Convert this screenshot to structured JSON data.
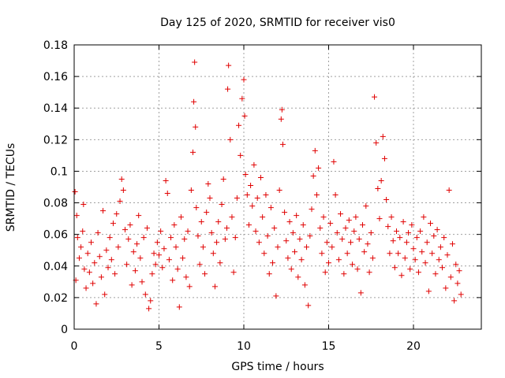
{
  "chart_data": {
    "type": "scatter",
    "title": "Day 125 of 2020, SRMTID for receiver vis0",
    "xlabel": "GPS time / hours",
    "ylabel": "SRMTID / TECUs",
    "xlim": [
      0,
      24
    ],
    "ylim": [
      0,
      0.18
    ],
    "xticks": [
      0,
      5,
      10,
      15,
      20
    ],
    "xtick_labels": [
      "0",
      "5",
      "10",
      "15",
      "20"
    ],
    "yticks": [
      0,
      0.02,
      0.04,
      0.06,
      0.08,
      0.1,
      0.12,
      0.14,
      0.16,
      0.18
    ],
    "ytick_labels": [
      "0",
      "0.02",
      "0.04",
      "0.06",
      "0.08",
      "0.1",
      "0.12",
      "0.14",
      "0.16",
      "0.18"
    ],
    "grid": true,
    "marker": "+",
    "colors": {
      "marker": "#e00000",
      "grid": "#a0a0a0",
      "axis": "#000000"
    },
    "series": [
      {
        "name": "SRMTID",
        "points": [
          [
            0.05,
            0.087
          ],
          [
            0.1,
            0.031
          ],
          [
            0.15,
            0.072
          ],
          [
            0.2,
            0.058
          ],
          [
            0.3,
            0.045
          ],
          [
            0.4,
            0.052
          ],
          [
            0.5,
            0.062
          ],
          [
            0.55,
            0.079
          ],
          [
            0.6,
            0.038
          ],
          [
            0.7,
            0.026
          ],
          [
            0.8,
            0.048
          ],
          [
            0.9,
            0.036
          ],
          [
            1.0,
            0.055
          ],
          [
            1.1,
            0.029
          ],
          [
            1.2,
            0.042
          ],
          [
            1.3,
            0.016
          ],
          [
            1.4,
            0.061
          ],
          [
            1.5,
            0.046
          ],
          [
            1.6,
            0.033
          ],
          [
            1.7,
            0.075
          ],
          [
            1.8,
            0.022
          ],
          [
            1.9,
            0.05
          ],
          [
            2.0,
            0.039
          ],
          [
            2.1,
            0.058
          ],
          [
            2.2,
            0.044
          ],
          [
            2.3,
            0.067
          ],
          [
            2.4,
            0.035
          ],
          [
            2.5,
            0.073
          ],
          [
            2.6,
            0.052
          ],
          [
            2.7,
            0.081
          ],
          [
            2.8,
            0.095
          ],
          [
            2.9,
            0.088
          ],
          [
            3.0,
            0.063
          ],
          [
            3.1,
            0.041
          ],
          [
            3.2,
            0.057
          ],
          [
            3.3,
            0.066
          ],
          [
            3.4,
            0.028
          ],
          [
            3.5,
            0.049
          ],
          [
            3.6,
            0.037
          ],
          [
            3.7,
            0.054
          ],
          [
            3.8,
            0.072
          ],
          [
            3.9,
            0.045
          ],
          [
            4.0,
            0.03
          ],
          [
            4.1,
            0.058
          ],
          [
            4.2,
            0.022
          ],
          [
            4.3,
            0.064
          ],
          [
            4.4,
            0.013
          ],
          [
            4.5,
            0.018
          ],
          [
            4.6,
            0.035
          ],
          [
            4.7,
            0.048
          ],
          [
            4.8,
            0.041
          ],
          [
            4.9,
            0.055
          ],
          [
            5.0,
            0.047
          ],
          [
            5.1,
            0.062
          ],
          [
            5.2,
            0.039
          ],
          [
            5.3,
            0.051
          ],
          [
            5.4,
            0.094
          ],
          [
            5.5,
            0.086
          ],
          [
            5.6,
            0.044
          ],
          [
            5.7,
            0.058
          ],
          [
            5.8,
            0.031
          ],
          [
            5.9,
            0.066
          ],
          [
            6.0,
            0.052
          ],
          [
            6.1,
            0.038
          ],
          [
            6.2,
            0.014
          ],
          [
            6.3,
            0.071
          ],
          [
            6.4,
            0.045
          ],
          [
            6.5,
            0.057
          ],
          [
            6.6,
            0.033
          ],
          [
            6.7,
            0.062
          ],
          [
            6.8,
            0.027
          ],
          [
            6.9,
            0.088
          ],
          [
            7.0,
            0.112
          ],
          [
            7.05,
            0.144
          ],
          [
            7.1,
            0.169
          ],
          [
            7.15,
            0.128
          ],
          [
            7.2,
            0.077
          ],
          [
            7.3,
            0.059
          ],
          [
            7.4,
            0.041
          ],
          [
            7.5,
            0.068
          ],
          [
            7.6,
            0.052
          ],
          [
            7.7,
            0.035
          ],
          [
            7.8,
            0.074
          ],
          [
            7.9,
            0.092
          ],
          [
            8.0,
            0.083
          ],
          [
            8.1,
            0.061
          ],
          [
            8.2,
            0.048
          ],
          [
            8.3,
            0.027
          ],
          [
            8.4,
            0.055
          ],
          [
            8.5,
            0.068
          ],
          [
            8.6,
            0.042
          ],
          [
            8.7,
            0.079
          ],
          [
            8.8,
            0.095
          ],
          [
            8.9,
            0.057
          ],
          [
            9.0,
            0.064
          ],
          [
            9.05,
            0.152
          ],
          [
            9.1,
            0.167
          ],
          [
            9.2,
            0.12
          ],
          [
            9.3,
            0.071
          ],
          [
            9.4,
            0.036
          ],
          [
            9.5,
            0.058
          ],
          [
            9.6,
            0.083
          ],
          [
            9.7,
            0.129
          ],
          [
            9.8,
            0.11
          ],
          [
            9.9,
            0.146
          ],
          [
            10.0,
            0.158
          ],
          [
            10.05,
            0.135
          ],
          [
            10.1,
            0.098
          ],
          [
            10.2,
            0.085
          ],
          [
            10.3,
            0.066
          ],
          [
            10.4,
            0.091
          ],
          [
            10.5,
            0.078
          ],
          [
            10.6,
            0.104
          ],
          [
            10.7,
            0.062
          ],
          [
            10.8,
            0.083
          ],
          [
            10.9,
            0.055
          ],
          [
            11.0,
            0.096
          ],
          [
            11.1,
            0.071
          ],
          [
            11.2,
            0.048
          ],
          [
            11.3,
            0.085
          ],
          [
            11.4,
            0.059
          ],
          [
            11.5,
            0.035
          ],
          [
            11.6,
            0.077
          ],
          [
            11.7,
            0.042
          ],
          [
            11.8,
            0.064
          ],
          [
            11.9,
            0.021
          ],
          [
            12.0,
            0.052
          ],
          [
            12.1,
            0.088
          ],
          [
            12.2,
            0.133
          ],
          [
            12.25,
            0.139
          ],
          [
            12.3,
            0.117
          ],
          [
            12.4,
            0.074
          ],
          [
            12.5,
            0.056
          ],
          [
            12.6,
            0.045
          ],
          [
            12.7,
            0.068
          ],
          [
            12.8,
            0.038
          ],
          [
            12.9,
            0.061
          ],
          [
            13.0,
            0.049
          ],
          [
            13.1,
            0.072
          ],
          [
            13.2,
            0.033
          ],
          [
            13.3,
            0.057
          ],
          [
            13.4,
            0.044
          ],
          [
            13.5,
            0.066
          ],
          [
            13.6,
            0.028
          ],
          [
            13.7,
            0.052
          ],
          [
            13.8,
            0.015
          ],
          [
            13.9,
            0.059
          ],
          [
            14.0,
            0.076
          ],
          [
            14.1,
            0.097
          ],
          [
            14.2,
            0.113
          ],
          [
            14.3,
            0.085
          ],
          [
            14.4,
            0.102
          ],
          [
            14.5,
            0.064
          ],
          [
            14.6,
            0.048
          ],
          [
            14.7,
            0.071
          ],
          [
            14.8,
            0.036
          ],
          [
            14.9,
            0.055
          ],
          [
            15.0,
            0.042
          ],
          [
            15.1,
            0.067
          ],
          [
            15.2,
            0.052
          ],
          [
            15.3,
            0.106
          ],
          [
            15.4,
            0.085
          ],
          [
            15.5,
            0.061
          ],
          [
            15.6,
            0.044
          ],
          [
            15.7,
            0.073
          ],
          [
            15.8,
            0.057
          ],
          [
            15.9,
            0.035
          ],
          [
            16.0,
            0.064
          ],
          [
            16.1,
            0.048
          ],
          [
            16.2,
            0.069
          ],
          [
            16.3,
            0.055
          ],
          [
            16.4,
            0.041
          ],
          [
            16.5,
            0.062
          ],
          [
            16.6,
            0.071
          ],
          [
            16.7,
            0.038
          ],
          [
            16.8,
            0.057
          ],
          [
            16.9,
            0.023
          ],
          [
            17.0,
            0.066
          ],
          [
            17.1,
            0.049
          ],
          [
            17.2,
            0.078
          ],
          [
            17.3,
            0.054
          ],
          [
            17.4,
            0.036
          ],
          [
            17.5,
            0.061
          ],
          [
            17.6,
            0.045
          ],
          [
            17.7,
            0.147
          ],
          [
            17.8,
            0.118
          ],
          [
            17.9,
            0.089
          ],
          [
            18.0,
            0.07
          ],
          [
            18.1,
            0.094
          ],
          [
            18.2,
            0.122
          ],
          [
            18.3,
            0.108
          ],
          [
            18.4,
            0.082
          ],
          [
            18.5,
            0.065
          ],
          [
            18.6,
            0.048
          ],
          [
            18.7,
            0.071
          ],
          [
            18.8,
            0.056
          ],
          [
            18.9,
            0.039
          ],
          [
            19.0,
            0.062
          ],
          [
            19.1,
            0.048
          ],
          [
            19.2,
            0.058
          ],
          [
            19.3,
            0.034
          ],
          [
            19.4,
            0.068
          ],
          [
            19.5,
            0.045
          ],
          [
            19.6,
            0.055
          ],
          [
            19.7,
            0.061
          ],
          [
            19.8,
            0.038
          ],
          [
            19.9,
            0.066
          ],
          [
            20.0,
            0.051
          ],
          [
            20.1,
            0.044
          ],
          [
            20.2,
            0.058
          ],
          [
            20.3,
            0.036
          ],
          [
            20.4,
            0.062
          ],
          [
            20.5,
            0.049
          ],
          [
            20.6,
            0.071
          ],
          [
            20.7,
            0.042
          ],
          [
            20.8,
            0.055
          ],
          [
            20.9,
            0.024
          ],
          [
            21.0,
            0.067
          ],
          [
            21.1,
            0.048
          ],
          [
            21.2,
            0.059
          ],
          [
            21.3,
            0.035
          ],
          [
            21.4,
            0.063
          ],
          [
            21.5,
            0.044
          ],
          [
            21.6,
            0.052
          ],
          [
            21.7,
            0.039
          ],
          [
            21.8,
            0.058
          ],
          [
            21.9,
            0.026
          ],
          [
            22.0,
            0.047
          ],
          [
            22.1,
            0.088
          ],
          [
            22.2,
            0.033
          ],
          [
            22.3,
            0.054
          ],
          [
            22.4,
            0.018
          ],
          [
            22.5,
            0.041
          ],
          [
            22.6,
            0.029
          ],
          [
            22.7,
            0.037
          ],
          [
            22.8,
            0.022
          ]
        ]
      }
    ]
  }
}
